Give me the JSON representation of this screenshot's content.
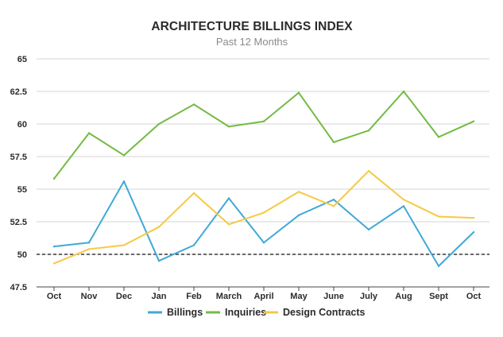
{
  "chart_data": {
    "type": "line",
    "title": "ARCHITECTURE BILLINGS INDEX",
    "subtitle": "Past 12 Months",
    "xlabel": "",
    "ylabel": "",
    "categories": [
      "Oct",
      "Nov",
      "Dec",
      "Jan",
      "Feb",
      "March",
      "April",
      "May",
      "June",
      "July",
      "Aug",
      "Sept",
      "Oct"
    ],
    "y_ticks": [
      "47.5",
      "50",
      "52.5",
      "55",
      "57.5",
      "60",
      "62.5",
      "65"
    ],
    "ylim": [
      47.5,
      65
    ],
    "grid": true,
    "reference_line": {
      "value": 50,
      "style": "dashed"
    },
    "legend_position": "bottom",
    "series": [
      {
        "name": "Billings",
        "color": "#3fa9d6",
        "values": [
          50.6,
          50.9,
          55.6,
          49.5,
          50.7,
          54.3,
          50.9,
          53.0,
          54.2,
          51.9,
          53.7,
          49.1,
          51.7
        ]
      },
      {
        "name": "Inquiries",
        "color": "#74bb43",
        "values": [
          55.8,
          59.3,
          57.6,
          60.0,
          61.5,
          59.8,
          60.2,
          62.4,
          58.6,
          59.5,
          62.5,
          59.0,
          60.2
        ]
      },
      {
        "name": "Design Contracts",
        "color": "#f6c944",
        "values": [
          49.3,
          50.4,
          50.7,
          52.1,
          54.7,
          52.3,
          53.2,
          54.8,
          53.7,
          56.4,
          54.2,
          52.9,
          52.8
        ]
      }
    ]
  }
}
